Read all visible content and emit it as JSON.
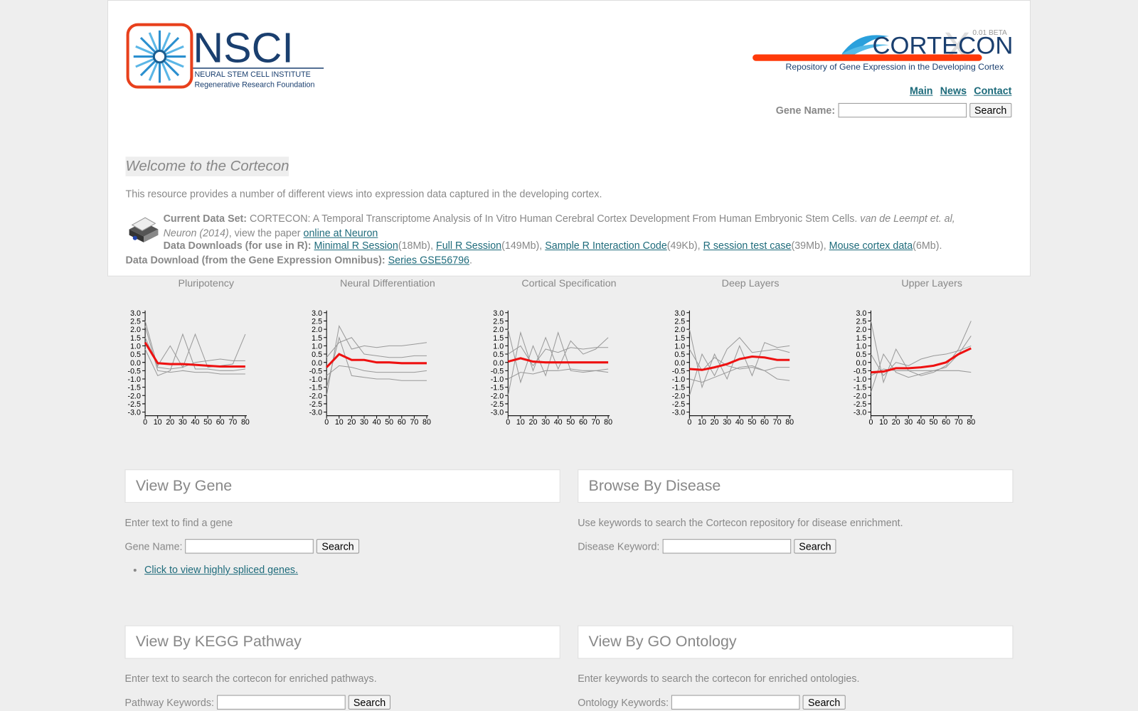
{
  "header": {
    "logo_text": "NSCI",
    "logo_subtitle": "NEURAL STEM CELL INSTITUTE",
    "logo_tagline": "Regenerative Research Foundation",
    "brand": "CORTECON",
    "version": "0.01 BETA",
    "brand_tagline": "Repository of Gene Expression in the Developing Cortex",
    "nav": [
      "Main",
      "News",
      "Contact"
    ],
    "search_label": "Gene Name:",
    "search_button": "Search"
  },
  "welcome": {
    "title": "Welcome to the Cortecon",
    "intro": "This resource provides a number of different views into expression data captured in the developing cortex.",
    "dataset_label": "Current Data Set:",
    "dataset_text": "CORTECON: A Temporal Transcriptome Analysis of In Vitro Human Cerebral Cortex Development From Human Embryonic Stem Cells.",
    "citation": "van de Leempt et. al, Neuron (2014)",
    "paper_prefix": ", view the paper",
    "paper_link": "online at Neuron",
    "downloads_label": "Data Downloads (for use in R):",
    "downloads": [
      {
        "link": "Minimal R Session",
        "size": "(18Mb),"
      },
      {
        "link": "Full R Session",
        "size": "(149Mb),"
      },
      {
        "link": "Sample R Interaction Code",
        "size": "(49Kb),"
      },
      {
        "link": "R session test case",
        "size": "(39Mb),"
      },
      {
        "link": "Mouse cortex data",
        "size": "(6Mb)."
      }
    ],
    "geo_label": "Data Download (from the Gene Expression Omnibus):",
    "geo_link": "Series GSE56796",
    "geo_suffix": "."
  },
  "chart_data": [
    {
      "type": "line",
      "title": "Pluripotency",
      "x": [
        0,
        10,
        20,
        30,
        40,
        50,
        60,
        70,
        80
      ],
      "xlim": [
        0,
        80
      ],
      "ylim": [
        -3,
        3
      ],
      "xticks": [
        0,
        10,
        20,
        30,
        40,
        50,
        60,
        70,
        80
      ],
      "yticks": [
        {
          "value": 3,
          "label": "3.0"
        },
        2.5,
        {
          "value": 2,
          "label": "2.0"
        },
        1.5,
        {
          "value": 1,
          "label": "1.0"
        },
        0.5,
        {
          "value": 0,
          "label": "0.0"
        },
        -0.5,
        {
          "value": -1,
          "label": "-1.0"
        },
        -1.5,
        {
          "value": -2,
          "label": "-2.0"
        },
        -2.5,
        {
          "value": -3,
          "label": "-3.0"
        }
      ],
      "series": [
        {
          "color": "#999999",
          "values": [
            2.2,
            -0.5,
            -0.6,
            -0.5,
            -0.6,
            -0.6,
            -0.7,
            -0.7,
            -0.7
          ]
        },
        {
          "color": "#999999",
          "values": [
            1.5,
            -0.2,
            1.0,
            -0.3,
            1.7,
            -0.3,
            -0.2,
            -0.1,
            1.7
          ]
        },
        {
          "color": "#999999",
          "values": [
            0.8,
            -0.8,
            -0.5,
            1.7,
            -0.4,
            -0.4,
            -0.5,
            -0.5,
            -0.4
          ]
        },
        {
          "color": "#999999",
          "values": [
            2.5,
            -0.3,
            -0.4,
            -0.3,
            0.0,
            0.1,
            0.2,
            0.1,
            0.1
          ]
        },
        {
          "color": "#ee1111",
          "values": [
            1.2,
            -0.05,
            -0.1,
            -0.1,
            -0.15,
            -0.2,
            -0.25,
            -0.25,
            -0.25
          ]
        }
      ]
    },
    {
      "type": "line",
      "title": "Neural Differentiation",
      "x": [
        0,
        10,
        20,
        30,
        40,
        50,
        60,
        70,
        80
      ],
      "xlim": [
        0,
        80
      ],
      "ylim": [
        -3,
        3
      ],
      "xticks": [
        0,
        10,
        20,
        30,
        40,
        50,
        60,
        70,
        80
      ],
      "yticks": [
        {
          "value": 3,
          "label": "3.0"
        },
        2.5,
        {
          "value": 2,
          "label": "2.0"
        },
        1.5,
        {
          "value": 1,
          "label": "1.0"
        },
        0.5,
        {
          "value": 0,
          "label": "0.0"
        },
        -0.5,
        {
          "value": -1,
          "label": "-1.0"
        },
        -1.5,
        {
          "value": -2,
          "label": "-2.0"
        },
        -2.5,
        {
          "value": -3,
          "label": "-3.0"
        }
      ],
      "series": [
        {
          "color": "#999999",
          "values": [
            -2.0,
            2.2,
            0.8,
            1.0,
            0.9,
            1.0,
            1.0,
            1.1,
            1.2
          ]
        },
        {
          "color": "#999999",
          "values": [
            -1.5,
            1.5,
            -0.8,
            -0.9,
            -1.0,
            -1.0,
            -1.1,
            -1.1,
            -1.1
          ]
        },
        {
          "color": "#999999",
          "values": [
            0.3,
            1.2,
            1.5,
            0.5,
            0.4,
            0.3,
            0.3,
            0.4,
            0.4
          ]
        },
        {
          "color": "#999999",
          "values": [
            -0.8,
            -0.2,
            -0.3,
            -0.5,
            -0.6,
            -0.6,
            -0.6,
            -0.6,
            -0.5
          ]
        },
        {
          "color": "#ee1111",
          "values": [
            -0.3,
            0.5,
            0.15,
            0.15,
            0.0,
            0.0,
            -0.05,
            -0.05,
            -0.05
          ]
        }
      ]
    },
    {
      "type": "line",
      "title": "Cortical Specification",
      "x": [
        0,
        10,
        20,
        30,
        40,
        50,
        60,
        70,
        80
      ],
      "xlim": [
        0,
        80
      ],
      "ylim": [
        -3,
        3
      ],
      "xticks": [
        0,
        10,
        20,
        30,
        40,
        50,
        60,
        70,
        80
      ],
      "yticks": [
        {
          "value": 3,
          "label": "3.0"
        },
        2.5,
        {
          "value": 2,
          "label": "2.0"
        },
        1.5,
        {
          "value": 1,
          "label": "1.0"
        },
        0.5,
        {
          "value": 0,
          "label": "0.0"
        },
        -0.5,
        {
          "value": -1,
          "label": "-1.0"
        },
        -1.5,
        {
          "value": -2,
          "label": "-2.0"
        },
        -2.5,
        {
          "value": -3,
          "label": "-3.0"
        }
      ],
      "series": [
        {
          "color": "#999999",
          "values": [
            -2.0,
            1.8,
            -0.5,
            1.5,
            -0.4,
            1.3,
            0.5,
            0.8,
            1.5
          ]
        },
        {
          "color": "#999999",
          "values": [
            2.0,
            -1.2,
            1.0,
            -0.8,
            1.8,
            -0.5,
            -0.6,
            -0.5,
            -0.4
          ]
        },
        {
          "color": "#999999",
          "values": [
            0.5,
            1.0,
            -0.2,
            0.8,
            0.6,
            0.9,
            0.8,
            0.9,
            0.9
          ]
        },
        {
          "color": "#999999",
          "values": [
            -1.0,
            -0.6,
            -0.7,
            -0.5,
            -0.5,
            -0.4,
            -0.5,
            -0.5,
            -0.6
          ]
        },
        {
          "color": "#ee1111",
          "values": [
            0.05,
            0.25,
            0.05,
            0.0,
            0.0,
            0.0,
            0.0,
            0.0,
            0.0
          ]
        }
      ]
    },
    {
      "type": "line",
      "title": "Deep Layers",
      "x": [
        0,
        10,
        20,
        30,
        40,
        50,
        60,
        70,
        80
      ],
      "xlim": [
        0,
        80
      ],
      "ylim": [
        -3,
        3
      ],
      "xticks": [
        0,
        10,
        20,
        30,
        40,
        50,
        60,
        70,
        80
      ],
      "yticks": [
        {
          "value": 3,
          "label": "3.0"
        },
        2.5,
        {
          "value": 2,
          "label": "2.0"
        },
        1.5,
        {
          "value": 1,
          "label": "1.0"
        },
        0.5,
        {
          "value": 0,
          "label": "0.0"
        },
        -0.5,
        {
          "value": -1,
          "label": "-1.0"
        },
        -1.5,
        {
          "value": -2,
          "label": "-2.0"
        },
        -2.5,
        {
          "value": -3,
          "label": "-3.0"
        }
      ],
      "series": [
        {
          "color": "#999999",
          "values": [
            2.0,
            -1.5,
            0.5,
            -1.0,
            1.0,
            -0.8,
            1.2,
            0.9,
            1.0
          ]
        },
        {
          "color": "#999999",
          "values": [
            -2.0,
            0.5,
            -0.8,
            0.8,
            1.5,
            0.6,
            0.7,
            0.8,
            0.6
          ]
        },
        {
          "color": "#999999",
          "values": [
            0.8,
            -0.5,
            0.3,
            -0.2,
            -0.4,
            -0.3,
            -0.5,
            -0.3,
            -0.3
          ]
        },
        {
          "color": "#999999",
          "values": [
            -1.0,
            -1.2,
            -0.9,
            -0.6,
            -0.3,
            -0.2,
            -0.5,
            -1.0,
            -1.1
          ]
        },
        {
          "color": "#ee1111",
          "values": [
            -0.4,
            -0.45,
            -0.3,
            -0.1,
            0.2,
            0.35,
            0.3,
            0.15,
            0.15
          ]
        }
      ]
    },
    {
      "type": "line",
      "title": "Upper Layers",
      "x": [
        0,
        10,
        20,
        30,
        40,
        50,
        60,
        70,
        80
      ],
      "xlim": [
        0,
        80
      ],
      "ylim": [
        -3,
        3
      ],
      "xticks": [
        0,
        10,
        20,
        30,
        40,
        50,
        60,
        70,
        80
      ],
      "yticks": [
        {
          "value": 3,
          "label": "3.0"
        },
        2.5,
        {
          "value": 2,
          "label": "2.0"
        },
        1.5,
        {
          "value": 1,
          "label": "1.0"
        },
        0.5,
        {
          "value": 0,
          "label": "0.0"
        },
        -0.5,
        {
          "value": -1,
          "label": "-1.0"
        },
        -1.5,
        {
          "value": -2,
          "label": "-2.0"
        },
        -2.5,
        {
          "value": -3,
          "label": "-3.0"
        }
      ],
      "series": [
        {
          "color": "#999999",
          "values": [
            2.5,
            -1.2,
            0.8,
            -0.5,
            -0.8,
            -0.6,
            -0.2,
            0.8,
            2.5
          ]
        },
        {
          "color": "#999999",
          "values": [
            -1.8,
            0.5,
            -0.6,
            -0.9,
            -0.7,
            -0.5,
            -0.3,
            0.5,
            1.6
          ]
        },
        {
          "color": "#999999",
          "values": [
            0.5,
            -0.8,
            0.0,
            -0.2,
            0.2,
            0.4,
            0.5,
            0.7,
            1.0
          ]
        },
        {
          "color": "#999999",
          "values": [
            -0.8,
            -0.4,
            -0.5,
            -0.5,
            -0.5,
            -0.5,
            -0.5,
            -0.5,
            -0.6
          ]
        },
        {
          "color": "#ee1111",
          "values": [
            -0.6,
            -0.55,
            -0.35,
            -0.35,
            -0.3,
            -0.2,
            0.0,
            0.5,
            0.85
          ]
        }
      ]
    }
  ],
  "panels": [
    {
      "title": "View By Gene",
      "description": "Enter text to find a gene",
      "label": "Gene Name:",
      "button": "Search",
      "links": [
        "Click to view highly spliced genes."
      ]
    },
    {
      "title": "Browse By Disease",
      "description": "Use keywords to search the Cortecon repository for disease enrichment.",
      "label": "Disease Keyword:",
      "button": "Search"
    },
    {
      "title": "View By KEGG Pathway",
      "description": "Enter text to search the cortecon for enriched pathways.",
      "label": "Pathway Keywords:",
      "button": "Search"
    },
    {
      "title": "View By GO Ontology",
      "description": "Enter keywords to search the cortecon for enriched ontologies.",
      "label": "Ontology Keywords:",
      "button": "Search"
    }
  ]
}
